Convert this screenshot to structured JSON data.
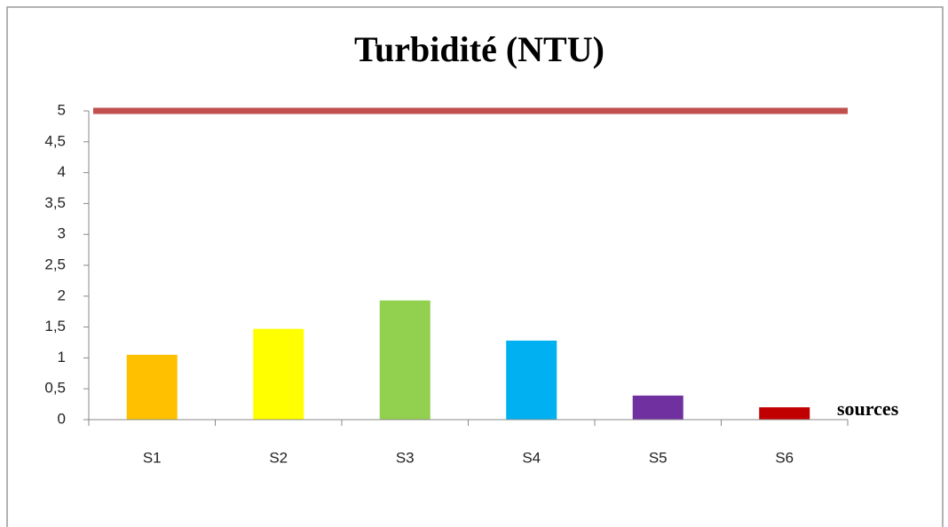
{
  "chart_data": {
    "type": "bar",
    "title": "Turbidité (NTU)",
    "x_label": "sources",
    "categories": [
      "S1",
      "S2",
      "S3",
      "S4",
      "S5",
      "S6"
    ],
    "values": [
      1.05,
      1.47,
      1.93,
      1.28,
      0.39,
      0.2
    ],
    "colors": [
      "#FFC000",
      "#FFFF00",
      "#92D050",
      "#00B0F0",
      "#7030A0",
      "#C00000"
    ],
    "reference_line": {
      "value": 5,
      "color": "#c0504d"
    },
    "ylim": [
      0,
      5
    ],
    "yticks": [
      0,
      {
        "value": 0.5,
        "label": "0,5"
      },
      1,
      {
        "value": 1.5,
        "label": "1,5"
      },
      2,
      {
        "value": 2.5,
        "label": "2,5"
      },
      3,
      {
        "value": 3.5,
        "label": "3,5"
      },
      4,
      {
        "value": 4.5,
        "label": "4,5"
      },
      5
    ],
    "grid": false
  }
}
